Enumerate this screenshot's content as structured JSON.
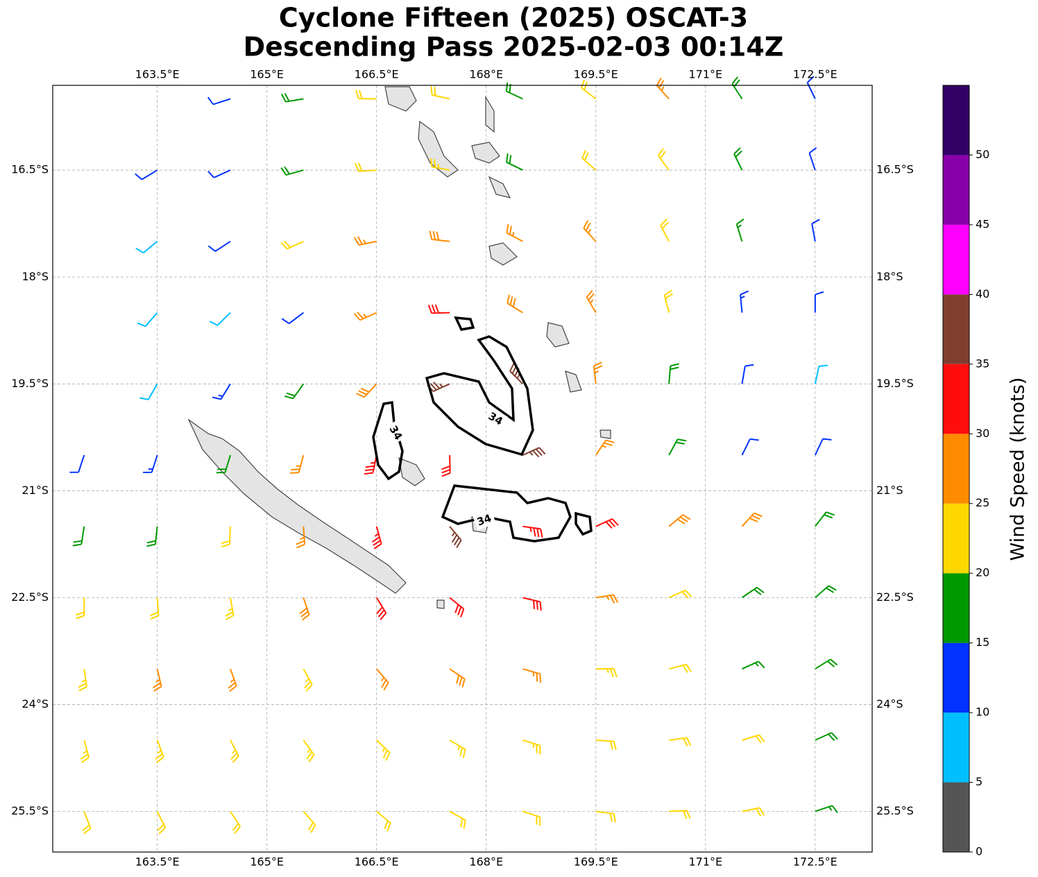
{
  "map": {
    "title": "Cyclone Fifteen (2025) OSCAT-3",
    "subtitle": "Descending Pass 2025-02-03 00:14Z",
    "xlim": [
      162.07,
      173.28
    ],
    "ylim": [
      -26.07,
      -15.31
    ],
    "xticks": [
      {
        "value": 163.5,
        "label": "163.5°E"
      },
      {
        "value": 165,
        "label": "165°E"
      },
      {
        "value": 166.5,
        "label": "166.5°E"
      },
      {
        "value": 168,
        "label": "168°E"
      },
      {
        "value": 169.5,
        "label": "169.5°E"
      },
      {
        "value": 171,
        "label": "171°E"
      },
      {
        "value": 172.5,
        "label": "172.5°E"
      }
    ],
    "yticks": [
      {
        "value": -16.5,
        "label": "16.5°S"
      },
      {
        "value": -18,
        "label": "18°S"
      },
      {
        "value": -19.5,
        "label": "19.5°S"
      },
      {
        "value": -21,
        "label": "21°S"
      },
      {
        "value": -22.5,
        "label": "22.5°S"
      },
      {
        "value": -24,
        "label": "24°S"
      },
      {
        "value": -25.5,
        "label": "25.5°S"
      }
    ],
    "grid": true,
    "contour_label": "34",
    "colorbar": {
      "label": "Wind Speed (knots)",
      "lim": [
        0,
        55
      ],
      "bounds": [
        0,
        5,
        10,
        15,
        20,
        25,
        30,
        35,
        40,
        45,
        50,
        55
      ],
      "colors": [
        "#555555",
        "#00bfff",
        "#0033ff",
        "#009900",
        "#ffd700",
        "#ff8c00",
        "#ff0d0d",
        "#7f3f2f",
        "#ff00ff",
        "#8800aa",
        "#330066"
      ],
      "ticks": [
        0,
        5,
        10,
        15,
        20,
        25,
        30,
        35,
        40,
        45,
        50
      ]
    },
    "wind": {
      "lons": [
        162.5,
        163.5,
        164.5,
        165.5,
        166.5,
        167.5,
        168.5,
        169.5,
        170.5,
        171.5,
        172.5
      ],
      "lats": [
        -15.5,
        -16.5,
        -17.5,
        -18.5,
        -19.5,
        -20.5,
        -21.5,
        -22.5,
        -23.5,
        -24.5,
        -25.5
      ],
      "speeds": [
        [
          null,
          null,
          12,
          18,
          22,
          20,
          18,
          22,
          25,
          18,
          12
        ],
        [
          null,
          12,
          12,
          18,
          22,
          24,
          18,
          20,
          22,
          18,
          12
        ],
        [
          null,
          8,
          12,
          20,
          25,
          28,
          25,
          25,
          20,
          15,
          12
        ],
        [
          null,
          8,
          8,
          12,
          25,
          32,
          28,
          26,
          20,
          13,
          12
        ],
        [
          null,
          8,
          13,
          18,
          28,
          37,
          35,
          27,
          18,
          12,
          8
        ],
        [
          12,
          13,
          18,
          25,
          33,
          30,
          37,
          25,
          18,
          12,
          12
        ],
        [
          18,
          18,
          20,
          27,
          33,
          37,
          34,
          30,
          28,
          28,
          18
        ],
        [
          22,
          22,
          24,
          28,
          30,
          32,
          30,
          27,
          22,
          18,
          18
        ],
        [
          23,
          25,
          25,
          24,
          26,
          28,
          27,
          24,
          22,
          17,
          18
        ],
        [
          23,
          24,
          24,
          23,
          23,
          24,
          23,
          22,
          22,
          20,
          18
        ],
        [
          22,
          22,
          22,
          22,
          22,
          22,
          22,
          22,
          22,
          20,
          17
        ]
      ]
    }
  }
}
